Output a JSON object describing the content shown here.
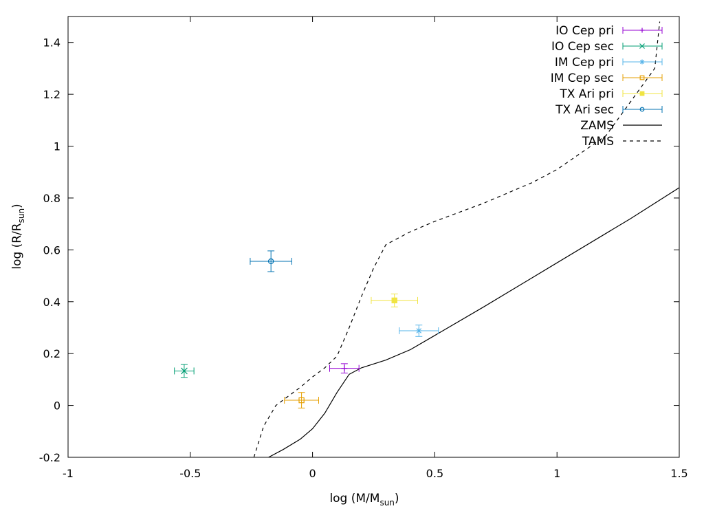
{
  "chart_data": {
    "type": "scatter",
    "title": "",
    "xlabel": {
      "main": "log (M/M",
      "sub": "sun",
      "close": ")"
    },
    "ylabel": {
      "main": "log (R/R",
      "sub": "sun",
      "close": ")"
    },
    "xlim": [
      -1,
      1.5
    ],
    "ylim": [
      -0.2,
      1.5
    ],
    "xticks": [
      -1,
      -0.5,
      0,
      0.5,
      1,
      1.5
    ],
    "xtick_labels": [
      "-1",
      "-0.5",
      "0",
      "0.5",
      "1",
      "1.5"
    ],
    "yticks": [
      -0.2,
      0,
      0.2,
      0.4,
      0.6,
      0.8,
      1,
      1.2,
      1.4
    ],
    "ytick_labels": [
      "-0.2",
      "0",
      "0.2",
      "0.4",
      "0.6",
      "0.8",
      "1",
      "1.2",
      "1.4"
    ],
    "grid": false,
    "legend_position": "top-right",
    "points": [
      {
        "name": "IO Cep pri",
        "color": "#9400d3",
        "marker": "plus",
        "x": 0.13,
        "y": 0.143,
        "xerr": 0.06,
        "yerr": 0.018
      },
      {
        "name": "IO Cep sec",
        "color": "#009e73",
        "marker": "cross",
        "x": -0.525,
        "y": 0.133,
        "xerr": 0.04,
        "yerr": 0.025
      },
      {
        "name": "IM Cep pri",
        "color": "#56b4e9",
        "marker": "star",
        "x": 0.435,
        "y": 0.288,
        "xerr": 0.08,
        "yerr": 0.022
      },
      {
        "name": "IM Cep sec",
        "color": "#e69f00",
        "marker": "square",
        "x": -0.045,
        "y": 0.02,
        "xerr": 0.07,
        "yerr": 0.03
      },
      {
        "name": "TX Ari pri",
        "color": "#f0e442",
        "marker": "filled-square",
        "x": 0.335,
        "y": 0.405,
        "xerr": 0.095,
        "yerr": 0.025
      },
      {
        "name": "TX Ari sec",
        "color": "#0072b2",
        "marker": "circle",
        "x": -0.17,
        "y": 0.556,
        "xerr": 0.085,
        "yerr": 0.04
      }
    ],
    "lines": [
      {
        "name": "ZAMS",
        "color": "#000000",
        "dash": "solid",
        "x": [
          -0.18,
          -0.12,
          -0.05,
          0.0,
          0.05,
          0.1,
          0.15,
          0.2,
          0.3,
          0.4,
          0.5,
          0.7,
          1.0,
          1.3,
          1.5
        ],
        "y": [
          -0.2,
          -0.17,
          -0.13,
          -0.09,
          -0.03,
          0.05,
          0.12,
          0.145,
          0.175,
          0.215,
          0.27,
          0.38,
          0.55,
          0.72,
          0.84
        ]
      },
      {
        "name": "TAMS",
        "color": "#000000",
        "dash": "dashed",
        "x": [
          -0.24,
          -0.2,
          -0.15,
          -0.1,
          -0.05,
          0.0,
          0.05,
          0.1,
          0.15,
          0.2,
          0.25,
          0.3,
          0.4,
          0.5,
          0.6,
          0.7,
          0.8,
          0.9,
          1.0,
          1.2,
          1.4,
          1.42
        ],
        "y": [
          -0.2,
          -0.08,
          0.0,
          0.035,
          0.07,
          0.11,
          0.145,
          0.19,
          0.3,
          0.42,
          0.53,
          0.62,
          0.67,
          0.71,
          0.745,
          0.78,
          0.82,
          0.86,
          0.91,
          1.04,
          1.3,
          1.48
        ]
      }
    ]
  }
}
